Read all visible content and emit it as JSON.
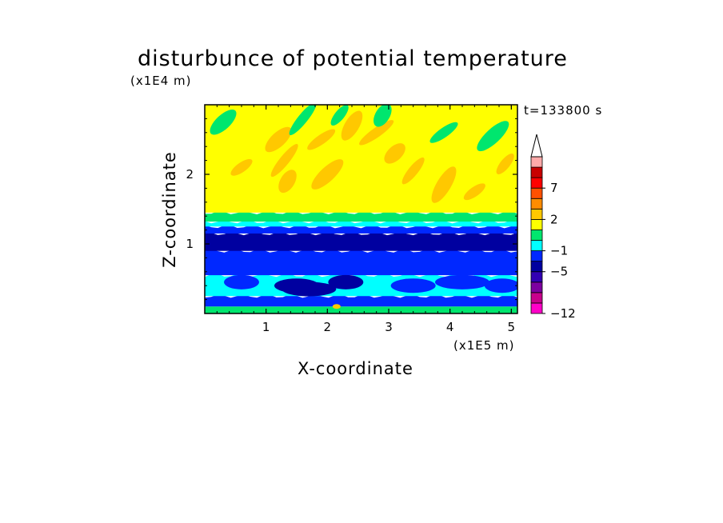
{
  "chart_data": {
    "type": "heatmap",
    "title": "disturbunce of potential temperature",
    "xlabel": "X-coordinate",
    "ylabel": "Z-coordinate",
    "x_unit": "(x1E5 m)",
    "y_unit": "(x1E4 m)",
    "annotation": "t=133800 s",
    "xlim": [
      0,
      5.1
    ],
    "ylim": [
      0,
      3.0
    ],
    "x_ticks": [
      1,
      2,
      3,
      4,
      5
    ],
    "y_ticks": [
      1,
      2
    ],
    "colorbar": {
      "tick_labels": [
        "7",
        "2",
        "-1",
        "-5",
        "-12"
      ],
      "tick_values": [
        7,
        2,
        -1,
        -5,
        -12
      ],
      "levels": [
        {
          "color": "#ff00c8"
        },
        {
          "color": "#c8008c"
        },
        {
          "color": "#7d00a0"
        },
        {
          "color": "#3200b4"
        },
        {
          "color": "#0000a0"
        },
        {
          "color": "#0028ff"
        },
        {
          "color": "#00ffff"
        },
        {
          "color": "#00e66e"
        },
        {
          "color": "#ffff00"
        },
        {
          "color": "#ffc800"
        },
        {
          "color": "#ff8c00"
        },
        {
          "color": "#ff5000"
        },
        {
          "color": "#ff0000"
        },
        {
          "color": "#c80000"
        },
        {
          "color": "#ffaaaa"
        }
      ],
      "extend": "max"
    },
    "layers": [
      {
        "z_min": 0.0,
        "z_max": 0.1,
        "color": "#00e66e",
        "value": 0
      },
      {
        "z_min": 0.1,
        "z_max": 0.25,
        "color": "#0028ff",
        "value": -4
      },
      {
        "z_min": 0.25,
        "z_max": 0.55,
        "color": "#00ffff",
        "value": -2
      },
      {
        "z_min": 0.55,
        "z_max": 0.9,
        "color": "#0028ff",
        "value": -4
      },
      {
        "z_min": 0.9,
        "z_max": 1.15,
        "color": "#0000a0",
        "value": -6
      },
      {
        "z_min": 1.15,
        "z_max": 1.25,
        "color": "#0028ff",
        "value": -4
      },
      {
        "z_min": 1.25,
        "z_max": 1.32,
        "color": "#00ffff",
        "value": -2
      },
      {
        "z_min": 1.32,
        "z_max": 1.45,
        "color": "#00e66e",
        "value": -0.5
      },
      {
        "z_min": 1.45,
        "z_max": 3.0,
        "color": "#ffff00",
        "value": 0.5
      }
    ],
    "upper_features": [
      {
        "x": 0.6,
        "z": 2.1,
        "value": 1.5
      },
      {
        "x": 1.2,
        "z": 2.5,
        "value": 1.5
      },
      {
        "x": 1.3,
        "z": 2.2,
        "value": 1.5
      },
      {
        "x": 1.35,
        "z": 1.9,
        "value": 1.5
      },
      {
        "x": 1.9,
        "z": 2.5,
        "value": 1.5
      },
      {
        "x": 2.0,
        "z": 2.0,
        "value": 1.5
      },
      {
        "x": 2.2,
        "z": 2.85,
        "value": -0.5
      },
      {
        "x": 2.4,
        "z": 2.7,
        "value": 1.5
      },
      {
        "x": 2.8,
        "z": 2.6,
        "value": 1.5
      },
      {
        "x": 3.1,
        "z": 2.3,
        "value": 1.5
      },
      {
        "x": 3.4,
        "z": 2.05,
        "value": 1.5
      },
      {
        "x": 3.9,
        "z": 1.85,
        "value": 1.5
      },
      {
        "x": 4.4,
        "z": 1.75,
        "value": 1.5
      },
      {
        "x": 0.3,
        "z": 2.75,
        "value": -0.5
      },
      {
        "x": 1.6,
        "z": 2.8,
        "value": -0.5
      },
      {
        "x": 2.9,
        "z": 2.85,
        "value": -0.5
      },
      {
        "x": 3.9,
        "z": 2.6,
        "value": -0.5
      },
      {
        "x": 4.7,
        "z": 2.55,
        "value": -0.5
      },
      {
        "x": 4.9,
        "z": 2.15,
        "value": 1.5
      }
    ],
    "lower_features": [
      {
        "x": 0.6,
        "z": 0.45,
        "value": -4
      },
      {
        "x": 1.5,
        "z": 0.4,
        "value": -6
      },
      {
        "x": 1.7,
        "z": 0.35,
        "value": -6
      },
      {
        "x": 2.3,
        "z": 0.45,
        "value": -6
      },
      {
        "x": 3.4,
        "z": 0.4,
        "value": -4
      },
      {
        "x": 4.2,
        "z": 0.45,
        "value": -4
      },
      {
        "x": 4.85,
        "z": 0.4,
        "value": -4
      },
      {
        "x": 2.15,
        "z": 0.1,
        "value": 2
      }
    ]
  }
}
